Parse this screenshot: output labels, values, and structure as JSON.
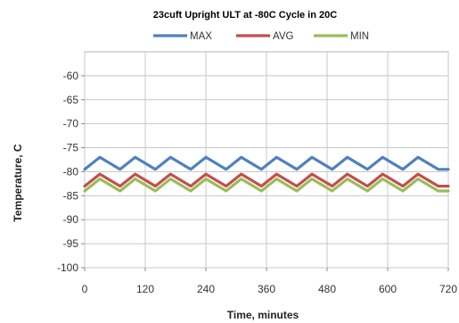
{
  "chart_data": {
    "type": "line",
    "title": "23cuft Upright ULT at -80C Cycle in 20C",
    "xlabel": "Time, minutes",
    "ylabel": "Temperature, C",
    "xlim": [
      0,
      720
    ],
    "ylim": [
      -100,
      -55
    ],
    "xticks": [
      0,
      120,
      240,
      360,
      480,
      600,
      720
    ],
    "yticks": [
      -60,
      -65,
      -70,
      -75,
      -80,
      -85,
      -90,
      -95,
      -100
    ],
    "grid": true,
    "legend": "top",
    "series": [
      {
        "name": "MAX",
        "color": "#4f81bd",
        "x": [
          0,
          30,
          70,
          100,
          140,
          170,
          210,
          240,
          280,
          310,
          350,
          380,
          420,
          450,
          490,
          520,
          560,
          590,
          630,
          660,
          700,
          720
        ],
        "y": [
          -79.5,
          -77,
          -79.5,
          -77,
          -79.5,
          -77,
          -79.5,
          -77,
          -79.5,
          -77,
          -79.5,
          -77,
          -79.5,
          -77,
          -79.5,
          -77,
          -79.5,
          -77,
          -79.5,
          -77,
          -79.5,
          -79.5
        ]
      },
      {
        "name": "AVG",
        "color": "#c0504d",
        "x": [
          0,
          30,
          70,
          100,
          140,
          170,
          210,
          240,
          280,
          310,
          350,
          380,
          420,
          450,
          490,
          520,
          560,
          590,
          630,
          660,
          700,
          720
        ],
        "y": [
          -83,
          -80.5,
          -83,
          -80.5,
          -83,
          -80.5,
          -83,
          -80.5,
          -83,
          -80.5,
          -83,
          -80.5,
          -83,
          -80.5,
          -83,
          -80.5,
          -83,
          -80.5,
          -83,
          -80.5,
          -83,
          -83
        ]
      },
      {
        "name": "MIN",
        "color": "#9bbb59",
        "x": [
          0,
          30,
          70,
          100,
          140,
          170,
          210,
          240,
          280,
          310,
          350,
          380,
          420,
          450,
          490,
          520,
          560,
          590,
          630,
          660,
          700,
          720
        ],
        "y": [
          -84,
          -81.5,
          -84,
          -81.5,
          -84,
          -81.5,
          -84,
          -81.5,
          -84,
          -81.5,
          -84,
          -81.5,
          -84,
          -81.5,
          -84,
          -81.5,
          -84,
          -81.5,
          -84,
          -81.5,
          -84,
          -84
        ]
      }
    ]
  }
}
